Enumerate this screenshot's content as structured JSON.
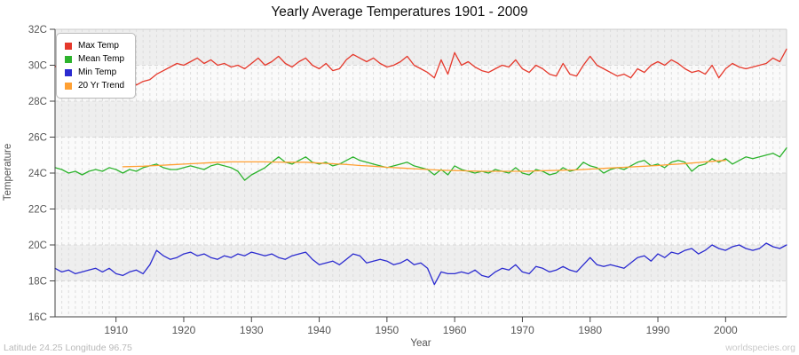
{
  "title": "Yearly Average Temperatures 1901 - 2009",
  "footer": {
    "left": "Latitude 24.25 Longitude 96.75",
    "right": "worldspecies.org"
  },
  "axes": {
    "x_label": "Year",
    "y_label": "Temperature",
    "x_ticks": [
      1910,
      1920,
      1930,
      1940,
      1950,
      1960,
      1970,
      1980,
      1990,
      2000
    ],
    "y_tick_values": [
      32,
      30,
      28,
      26,
      24,
      22,
      20,
      18,
      16
    ],
    "y_tick_labels": [
      "32C",
      "30C",
      "28C",
      "26C",
      "24C",
      "22C",
      "20C",
      "18C",
      "16C"
    ]
  },
  "style": {
    "band_gray": "#eeeeee",
    "band_light": "#fafafa",
    "grid_vertical": "#dddddd",
    "grid_horizontal": "#d8d8d8",
    "frame_light": "#cccccc",
    "axis_dark": "#444444",
    "tick_text": "#555555"
  },
  "chart_data": {
    "type": "line",
    "title": "Yearly Average Temperatures 1901 - 2009",
    "xlabel": "Year",
    "ylabel": "Temperature",
    "x_range": [
      1901,
      2009
    ],
    "ylim": [
      16,
      32
    ],
    "grid": true,
    "legend_position": "top-left",
    "series": [
      {
        "name": "Max Temp",
        "color": "#e5382b",
        "x_start": 1901,
        "values": [
          29.9,
          30.2,
          29.7,
          30.0,
          29.6,
          29.5,
          29.7,
          29.4,
          29.3,
          29.4,
          29.2,
          29.3,
          28.9,
          29.1,
          29.2,
          29.5,
          29.7,
          29.9,
          30.1,
          30.0,
          30.2,
          30.4,
          30.1,
          30.3,
          30.0,
          30.1,
          29.9,
          30.0,
          29.8,
          30.1,
          30.4,
          30.0,
          30.2,
          30.5,
          30.1,
          29.9,
          30.2,
          30.4,
          30.0,
          29.8,
          30.1,
          29.7,
          29.8,
          30.3,
          30.6,
          30.4,
          30.2,
          30.4,
          30.1,
          29.9,
          30.0,
          30.2,
          30.5,
          30.0,
          29.8,
          29.6,
          29.3,
          30.3,
          29.5,
          30.7,
          30.0,
          30.2,
          29.9,
          29.7,
          29.6,
          29.8,
          30.0,
          29.9,
          30.3,
          29.8,
          29.6,
          30.0,
          29.8,
          29.5,
          29.4,
          30.1,
          29.5,
          29.4,
          30.0,
          30.5,
          30.0,
          29.8,
          29.6,
          29.4,
          29.5,
          29.3,
          29.8,
          29.6,
          30.0,
          30.2,
          30.0,
          30.3,
          30.1,
          29.8,
          29.6,
          29.7,
          29.5,
          30.0,
          29.3,
          29.8,
          30.1,
          29.9,
          29.8,
          29.9,
          30.0,
          30.1,
          30.4,
          30.2,
          30.9
        ]
      },
      {
        "name": "Mean Temp",
        "color": "#2db32d",
        "x_start": 1901,
        "values": [
          24.3,
          24.2,
          24.0,
          24.1,
          23.9,
          24.1,
          24.2,
          24.1,
          24.3,
          24.2,
          24.0,
          24.2,
          24.1,
          24.3,
          24.4,
          24.5,
          24.3,
          24.2,
          24.2,
          24.3,
          24.4,
          24.3,
          24.2,
          24.4,
          24.5,
          24.4,
          24.3,
          24.1,
          23.6,
          23.9,
          24.1,
          24.3,
          24.6,
          24.9,
          24.6,
          24.5,
          24.7,
          24.9,
          24.6,
          24.5,
          24.6,
          24.4,
          24.5,
          24.7,
          24.9,
          24.7,
          24.6,
          24.5,
          24.4,
          24.3,
          24.4,
          24.5,
          24.6,
          24.4,
          24.3,
          24.2,
          23.9,
          24.2,
          23.9,
          24.4,
          24.2,
          24.1,
          24.0,
          24.1,
          24.0,
          24.2,
          24.1,
          24.0,
          24.3,
          24.0,
          23.9,
          24.2,
          24.1,
          23.9,
          24.0,
          24.3,
          24.1,
          24.2,
          24.6,
          24.4,
          24.3,
          24.0,
          24.2,
          24.3,
          24.2,
          24.4,
          24.6,
          24.7,
          24.4,
          24.5,
          24.3,
          24.6,
          24.7,
          24.6,
          24.1,
          24.4,
          24.5,
          24.8,
          24.6,
          24.8,
          24.5,
          24.7,
          24.9,
          24.8,
          24.9,
          25.0,
          25.1,
          24.9,
          25.4
        ]
      },
      {
        "name": "Min Temp",
        "color": "#2b2bd0",
        "x_start": 1901,
        "values": [
          18.7,
          18.5,
          18.6,
          18.4,
          18.5,
          18.6,
          18.7,
          18.5,
          18.7,
          18.4,
          18.3,
          18.5,
          18.6,
          18.4,
          18.9,
          19.7,
          19.4,
          19.2,
          19.3,
          19.5,
          19.6,
          19.4,
          19.5,
          19.3,
          19.2,
          19.4,
          19.3,
          19.5,
          19.4,
          19.6,
          19.5,
          19.4,
          19.5,
          19.3,
          19.2,
          19.4,
          19.5,
          19.6,
          19.2,
          18.9,
          19.0,
          19.1,
          18.9,
          19.2,
          19.5,
          19.4,
          19.0,
          19.1,
          19.2,
          19.1,
          18.9,
          19.0,
          19.2,
          18.9,
          19.0,
          18.7,
          17.8,
          18.5,
          18.4,
          18.4,
          18.5,
          18.4,
          18.6,
          18.3,
          18.2,
          18.5,
          18.7,
          18.6,
          18.9,
          18.5,
          18.4,
          18.8,
          18.7,
          18.5,
          18.6,
          18.8,
          18.6,
          18.5,
          18.9,
          19.3,
          18.9,
          18.8,
          18.9,
          18.8,
          18.7,
          19.0,
          19.3,
          19.4,
          19.1,
          19.5,
          19.3,
          19.6,
          19.5,
          19.7,
          19.8,
          19.5,
          19.7,
          20.0,
          19.8,
          19.7,
          19.9,
          20.0,
          19.8,
          19.7,
          19.8,
          20.1,
          19.9,
          19.8,
          20.0
        ]
      },
      {
        "name": "20 Yr Trend",
        "color": "#ffa033",
        "x_start": 1911,
        "values": [
          24.35,
          24.36,
          24.37,
          24.38,
          24.4,
          24.42,
          24.44,
          24.46,
          24.48,
          24.5,
          24.52,
          24.54,
          24.56,
          24.58,
          24.6,
          24.61,
          24.62,
          24.62,
          24.62,
          24.62,
          24.62,
          24.62,
          24.61,
          24.61,
          24.6,
          24.6,
          24.6,
          24.6,
          24.58,
          24.56,
          24.54,
          24.52,
          24.5,
          24.48,
          24.45,
          24.42,
          24.4,
          24.38,
          24.35,
          24.32,
          24.3,
          24.28,
          24.26,
          24.24,
          24.22,
          24.2,
          24.18,
          24.16,
          24.15,
          24.14,
          24.13,
          24.12,
          24.11,
          24.1,
          24.1,
          24.1,
          24.1,
          24.1,
          24.1,
          24.1,
          24.11,
          24.12,
          24.13,
          24.14,
          24.15,
          24.16,
          24.17,
          24.18,
          24.2,
          24.22,
          24.24,
          24.26,
          24.28,
          24.3,
          24.32,
          24.34,
          24.36,
          24.38,
          24.4,
          24.42,
          24.45,
          24.48,
          24.5,
          24.53,
          24.56,
          24.59,
          24.62,
          24.65,
          24.68,
          24.7
        ]
      }
    ]
  }
}
